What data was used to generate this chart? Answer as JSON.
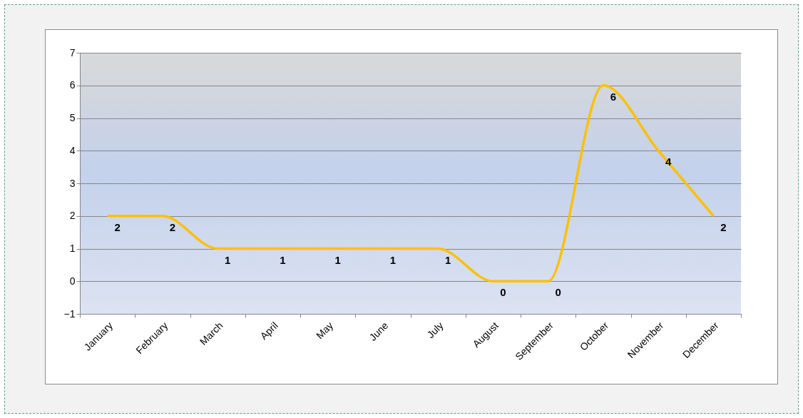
{
  "chart_data": {
    "type": "line",
    "categories": [
      "January",
      "February",
      "March",
      "April",
      "May",
      "June",
      "July",
      "August",
      "September",
      "October",
      "November",
      "December"
    ],
    "series": [
      {
        "color": "#ffc000",
        "values": [
          2,
          2,
          1,
          1,
          1,
          1,
          1,
          0,
          0,
          6,
          4,
          2
        ]
      }
    ],
    "ylim": [
      -1,
      7
    ],
    "yticks": [
      -1,
      0,
      1,
      2,
      3,
      4,
      5,
      6,
      7
    ],
    "grid": "y",
    "legend": false,
    "marker": "none",
    "line_style": "solid",
    "data_labels": true
  }
}
